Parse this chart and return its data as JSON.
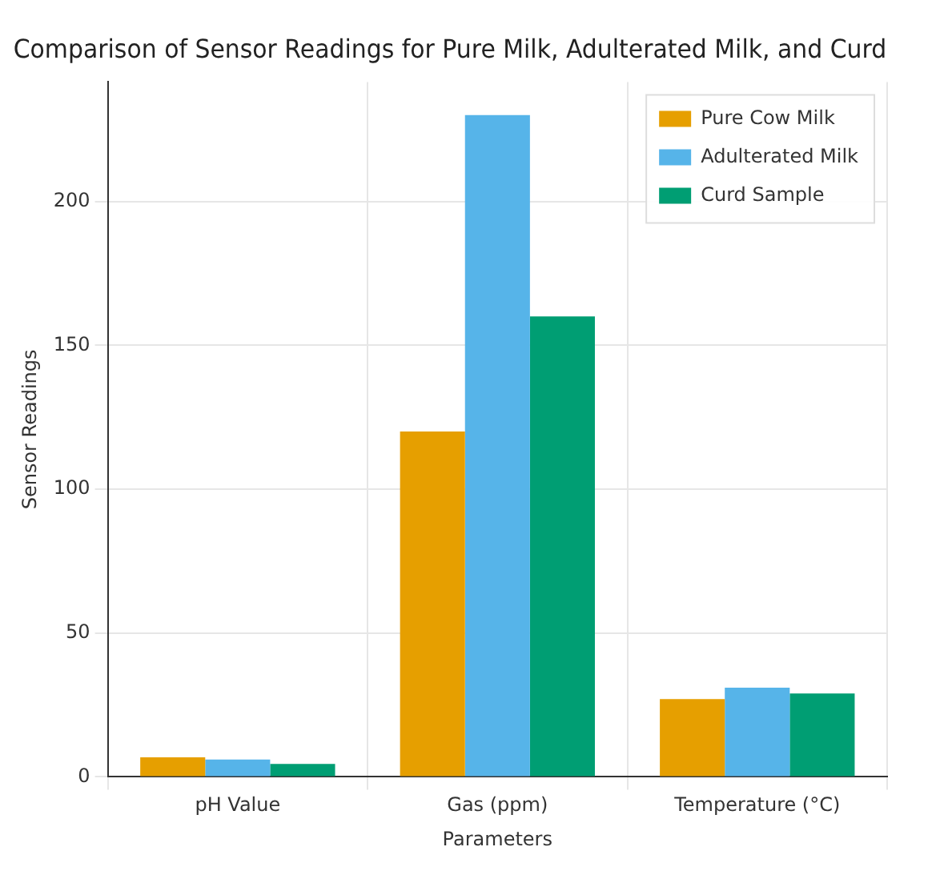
{
  "chart_data": {
    "type": "bar",
    "title": "Comparison of Sensor Readings for Pure Milk, Adulterated Milk, and Curd",
    "xlabel": "Parameters",
    "ylabel": "Sensor Readings",
    "categories": [
      "pH Value",
      "Gas (ppm)",
      "Temperature (°C)"
    ],
    "series": [
      {
        "name": "Pure Cow Milk",
        "color": "#e69f00",
        "values": [
          6.8,
          120,
          27
        ]
      },
      {
        "name": "Adulterated Milk",
        "color": "#56b4e9",
        "values": [
          6,
          230,
          31
        ]
      },
      {
        "name": "Curd Sample",
        "color": "#009e73",
        "values": [
          4.5,
          160,
          29
        ]
      }
    ],
    "ylim": [
      0,
      241.5
    ],
    "yticks": [
      0,
      50,
      100,
      150,
      200
    ],
    "grid": true,
    "legend": "top right"
  }
}
